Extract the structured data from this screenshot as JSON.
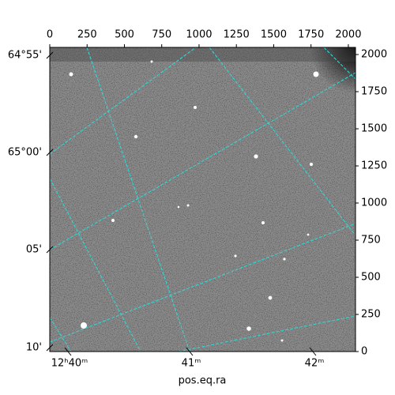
{
  "chart_data": {
    "type": "image",
    "xlabel": "pos.eq.ra",
    "xlim": [
      0,
      2048
    ],
    "ylim": [
      0,
      2048
    ],
    "xticks": [
      0,
      250,
      500,
      750,
      1000,
      1250,
      1500,
      1750,
      2000
    ],
    "yticks": [
      0,
      250,
      500,
      750,
      1000,
      1250,
      1500,
      1750,
      2000
    ],
    "ra_labels": [
      "12ʰ40ᵐ",
      "41ᵐ",
      "42ᵐ"
    ],
    "dec_labels": [
      "64°55'",
      "65°00'",
      "05'",
      "10'"
    ]
  }
}
